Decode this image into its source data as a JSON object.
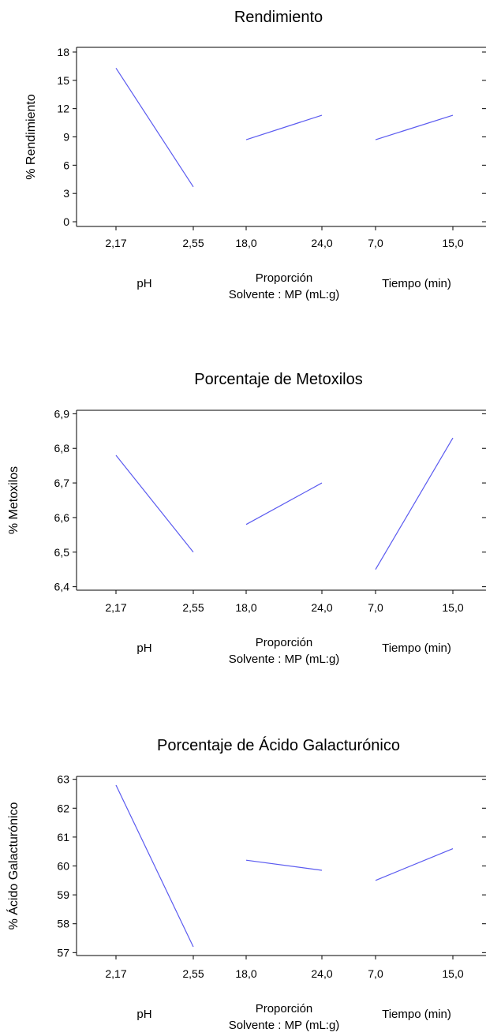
{
  "colors": {
    "line": "#5b5bf0",
    "frame": "#000000",
    "background": "#ffffff"
  },
  "factor_labels": {
    "ph": "pH",
    "proporcion_line1": "Proporción",
    "proporcion_line2": "Solvente : MP (mL:g)",
    "tiempo": "Tiempo (min)"
  },
  "chart_data": [
    {
      "type": "line",
      "title": "Rendimiento",
      "ylabel": "% Rendimiento",
      "ylim": [
        -0.5,
        18.5
      ],
      "yticks": [
        "0",
        "3",
        "6",
        "9",
        "12",
        "15",
        "18"
      ],
      "grid": false,
      "segments": [
        {
          "factor": "pH",
          "x": [
            "2,17",
            "2,55"
          ],
          "y": [
            16.3,
            3.7
          ]
        },
        {
          "factor": "Proporción Solvente : MP (mL:g)",
          "x": [
            "18,0",
            "24,0"
          ],
          "y": [
            8.7,
            11.3
          ]
        },
        {
          "factor": "Tiempo (min)",
          "x": [
            "7,0",
            "15,0"
          ],
          "y": [
            8.7,
            11.3
          ]
        }
      ]
    },
    {
      "type": "line",
      "title": "Porcentaje de Metoxilos",
      "ylabel": "% Metoxilos",
      "ylim": [
        6.39,
        6.91
      ],
      "yticks": [
        "6,4",
        "6,5",
        "6,6",
        "6,7",
        "6,8",
        "6,9"
      ],
      "grid": false,
      "segments": [
        {
          "factor": "pH",
          "x": [
            "2,17",
            "2,55"
          ],
          "y": [
            6.78,
            6.5
          ]
        },
        {
          "factor": "Proporción Solvente : MP (mL:g)",
          "x": [
            "18,0",
            "24,0"
          ],
          "y": [
            6.58,
            6.7
          ]
        },
        {
          "factor": "Tiempo (min)",
          "x": [
            "7,0",
            "15,0"
          ],
          "y": [
            6.45,
            6.83
          ]
        }
      ]
    },
    {
      "type": "line",
      "title": "Porcentaje de Ácido Galacturónico",
      "ylabel": "% Ácido Galacturónico",
      "ylim": [
        56.9,
        63.1
      ],
      "yticks": [
        "57",
        "58",
        "59",
        "60",
        "61",
        "62",
        "63"
      ],
      "grid": false,
      "segments": [
        {
          "factor": "pH",
          "x": [
            "2,17",
            "2,55"
          ],
          "y": [
            62.8,
            57.2
          ]
        },
        {
          "factor": "Proporción Solvente : MP (mL:g)",
          "x": [
            "18,0",
            "24,0"
          ],
          "y": [
            60.2,
            59.85
          ]
        },
        {
          "factor": "Tiempo (min)",
          "x": [
            "7,0",
            "15,0"
          ],
          "y": [
            59.5,
            60.6
          ]
        }
      ]
    }
  ]
}
